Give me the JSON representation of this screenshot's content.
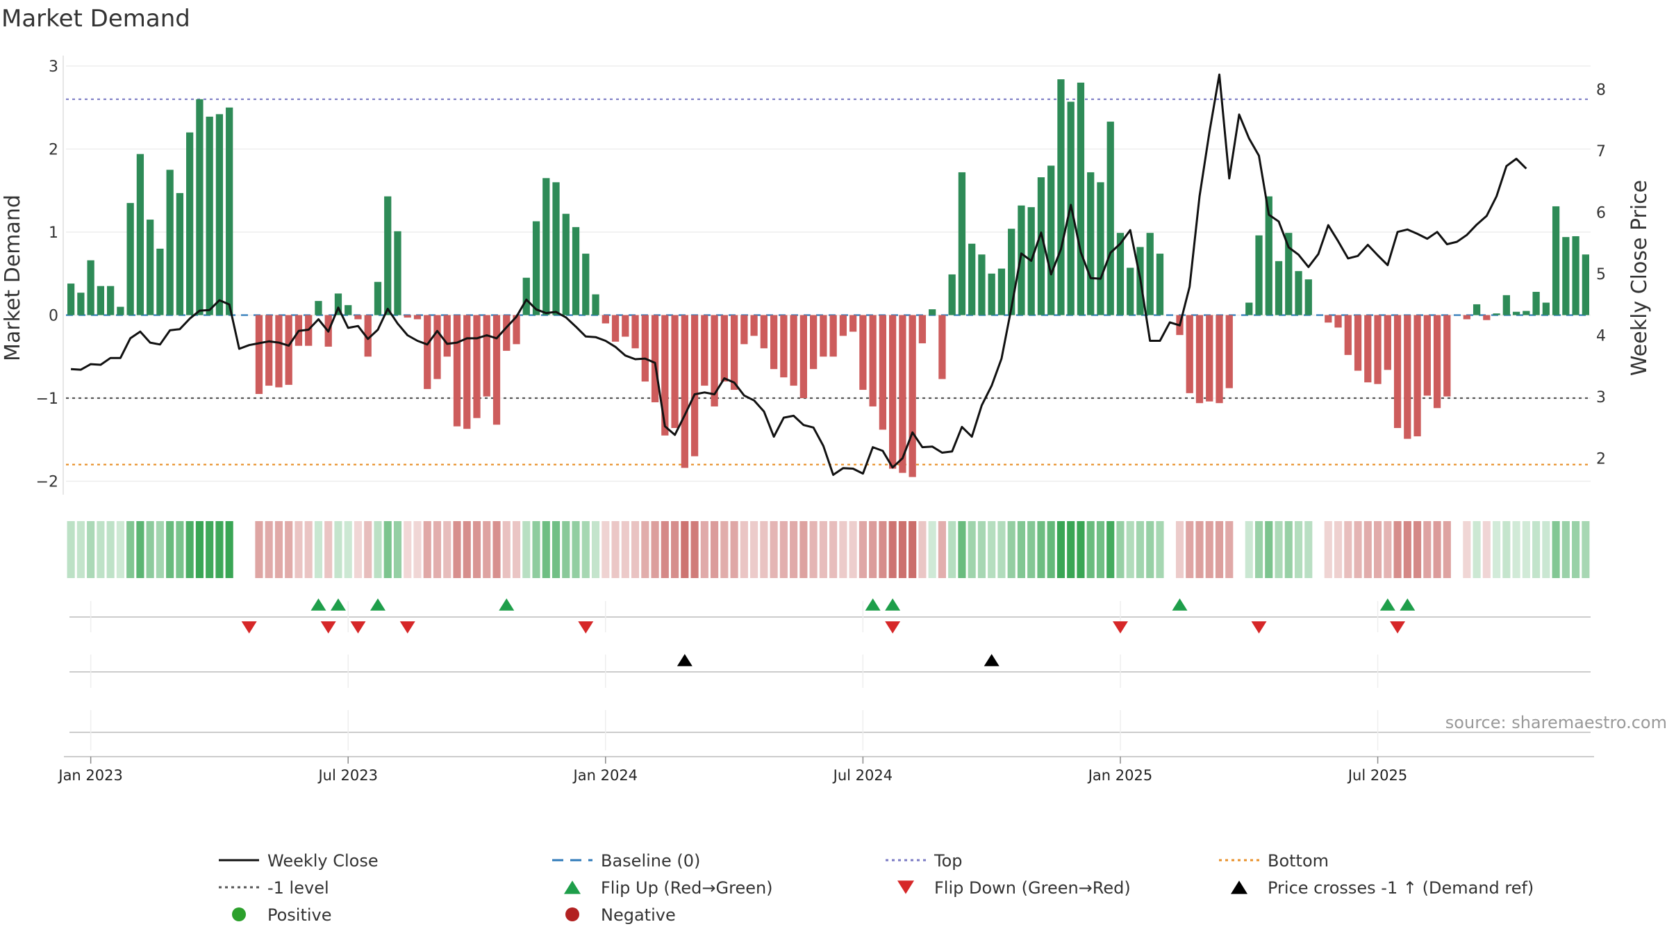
{
  "chart_data": {
    "type": "bar",
    "title": "Market Demand",
    "ylabel": "Market Demand",
    "y2label": "Weekly Close Price",
    "ylim": [
      -2.2,
      3.1
    ],
    "y2lim": [
      1.5,
      8.4
    ],
    "yticks": [
      "3",
      "2",
      "1",
      "0",
      "−1",
      "−2"
    ],
    "y2ticks": [
      "8",
      "7",
      "6",
      "5",
      "4",
      "3",
      "2"
    ],
    "xticks": [
      "Jan 2023",
      "Jul 2023",
      "Jan 2024",
      "Jul 2024",
      "Jan 2025",
      "Jul 2025"
    ],
    "levels": {
      "top": 2.6,
      "minus_one": -1,
      "bottom": -1.8,
      "baseline": 0
    },
    "demand": [
      0.38,
      0.27,
      0.66,
      0.35,
      0.35,
      0.1,
      1.35,
      1.94,
      1.15,
      0.8,
      1.75,
      1.47,
      2.2,
      2.6,
      2.39,
      2.42,
      2.5,
      0,
      0,
      -0.95,
      -0.85,
      -0.87,
      -0.84,
      -0.37,
      -0.37,
      0.17,
      -0.38,
      0.26,
      0.12,
      -0.05,
      -0.5,
      0.4,
      1.43,
      1.01,
      -0.03,
      -0.05,
      -0.89,
      -0.77,
      -0.5,
      -1.34,
      -1.37,
      -1.24,
      -0.98,
      -1.32,
      -0.43,
      -0.35,
      0.45,
      1.13,
      1.65,
      1.6,
      1.22,
      1.06,
      0.74,
      0.25,
      -0.1,
      -0.32,
      -0.26,
      -0.4,
      -0.8,
      -1.05,
      -1.45,
      -1.36,
      -1.84,
      -1.7,
      -0.85,
      -1.1,
      -0.8,
      -0.9,
      -0.35,
      -0.25,
      -0.4,
      -0.65,
      -0.75,
      -0.85,
      -1.0,
      -0.65,
      -0.5,
      -0.5,
      -0.25,
      -0.2,
      -0.9,
      -1.1,
      -1.38,
      -1.85,
      -1.9,
      -1.95,
      -0.34,
      0.07,
      -0.77,
      0.49,
      1.72,
      0.86,
      0.73,
      0.5,
      0.56,
      1.04,
      1.32,
      1.3,
      1.66,
      1.8,
      2.84,
      2.57,
      2.8,
      1.72,
      1.6,
      2.33,
      0.99,
      0.57,
      0.82,
      0.99,
      0.74,
      0,
      -0.24,
      -0.94,
      -1.06,
      -1.04,
      -1.06,
      -0.88,
      0,
      0.15,
      0.96,
      1.43,
      0.65,
      0.99,
      0.53,
      0.43,
      0,
      -0.09,
      -0.15,
      -0.48,
      -0.67,
      -0.81,
      -0.83,
      -0.66,
      -1.36,
      -1.49,
      -1.46,
      -0.97,
      -1.12,
      -0.98,
      0,
      -0.05,
      0.13,
      -0.06,
      0.02,
      0.24,
      0.04,
      0.05,
      0.28,
      0.15,
      1.31,
      0.94,
      0.95,
      0.73
    ],
    "heat_values": [
      0.38,
      0.27,
      0.66,
      0.35,
      0.35,
      0.1,
      1.35,
      1.94,
      1.15,
      0.8,
      1.75,
      1.47,
      2.2,
      2.6,
      2.39,
      2.42,
      2.5,
      0,
      0,
      -0.95,
      -0.85,
      -0.87,
      -0.84,
      -0.37,
      -0.37,
      0.17,
      -0.38,
      0.26,
      0.12,
      -0.05,
      -0.5,
      0.4,
      1.43,
      1.01,
      -0.03,
      -0.05,
      -0.89,
      -0.77,
      -0.5,
      -1.34,
      -1.37,
      -1.24,
      -0.98,
      -1.32,
      -0.43,
      -0.35,
      0.45,
      1.13,
      1.65,
      1.6,
      1.22,
      1.06,
      0.74,
      0.25,
      -0.1,
      -0.32,
      -0.26,
      -0.4,
      -0.8,
      -1.05,
      -1.45,
      -1.36,
      -1.84,
      -1.7,
      -0.85,
      -1.1,
      -0.8,
      -0.9,
      -0.35,
      -0.25,
      -0.4,
      -0.65,
      -0.75,
      -0.85,
      -1.0,
      -0.65,
      -0.5,
      -0.5,
      -0.25,
      -0.2,
      -0.9,
      -1.1,
      -1.38,
      -1.85,
      -1.9,
      -1.95,
      -0.34,
      0.07,
      -0.77,
      0.49,
      1.72,
      0.86,
      0.73,
      0.5,
      0.56,
      1.04,
      1.32,
      1.3,
      1.66,
      1.8,
      2.84,
      2.57,
      2.8,
      1.72,
      1.6,
      2.33,
      0.99,
      0.57,
      0.82,
      0.99,
      0.74,
      0,
      -0.24,
      -0.94,
      -1.06,
      -1.04,
      -1.06,
      -0.88,
      0,
      0.15,
      0.96,
      1.43,
      0.65,
      0.99,
      0.53,
      0.43,
      0,
      -0.09,
      -0.15,
      -0.48,
      -0.67,
      -0.81,
      -0.83,
      -0.66,
      -1.36,
      -1.49,
      -1.46,
      -0.97,
      -1.12,
      -0.98,
      0,
      -0.05,
      0.13,
      -0.06,
      0.02,
      0.24,
      0.04,
      0.05,
      0.28,
      0.15,
      1.31,
      0.94,
      0.95,
      0.73
    ],
    "weekly_close": [
      3.45,
      3.44,
      3.53,
      3.52,
      3.63,
      3.63,
      3.95,
      4.06,
      3.88,
      3.85,
      4.08,
      4.1,
      4.27,
      4.4,
      4.41,
      4.57,
      4.5,
      3.78,
      3.84,
      3.87,
      3.9,
      3.88,
      3.83,
      4.07,
      4.09,
      4.26,
      4.06,
      4.45,
      4.12,
      4.15,
      3.94,
      4.09,
      4.43,
      4.19,
      4.0,
      3.91,
      3.85,
      4.07,
      3.86,
      3.88,
      3.95,
      3.95,
      4.0,
      3.95,
      4.13,
      4.3,
      4.58,
      4.42,
      4.36,
      4.38,
      4.29,
      4.14,
      3.98,
      3.97,
      3.91,
      3.81,
      3.67,
      3.61,
      3.62,
      3.55,
      2.52,
      2.38,
      2.7,
      3.04,
      3.07,
      3.04,
      3.3,
      3.23,
      3.02,
      2.94,
      2.76,
      2.35,
      2.66,
      2.69,
      2.54,
      2.5,
      2.2,
      1.73,
      1.84,
      1.83,
      1.75,
      2.18,
      2.12,
      1.85,
      2.0,
      2.42,
      2.18,
      2.19,
      2.09,
      2.11,
      2.51,
      2.35,
      2.86,
      3.18,
      3.62,
      4.45,
      5.33,
      5.21,
      5.67,
      4.99,
      5.4,
      6.12,
      5.35,
      4.93,
      4.92,
      5.34,
      5.49,
      5.71,
      4.93,
      3.91,
      3.91,
      4.21,
      4.16,
      4.79,
      6.26,
      7.31,
      8.24,
      6.55,
      7.59,
      7.2,
      6.92,
      5.96,
      5.85,
      5.43,
      5.31,
      5.11,
      5.32,
      5.79,
      5.53,
      5.25,
      5.29,
      5.47,
      5.3,
      5.14,
      5.68,
      5.72,
      5.65,
      5.57,
      5.68,
      5.48,
      5.52,
      5.63,
      5.8,
      5.94,
      6.26,
      6.75,
      6.87,
      6.71
    ],
    "flip_up_weeks": [
      25,
      27,
      31,
      44,
      81,
      83,
      112,
      133,
      135
    ],
    "flip_down_weeks": [
      18,
      26,
      29,
      34,
      52,
      83,
      106,
      120,
      134
    ],
    "price_cross_weeks": [
      62,
      93
    ]
  },
  "source": "source: sharemaestro.com",
  "legend": [
    {
      "label": "Weekly Close",
      "marker": "line",
      "color": "#111111"
    },
    {
      "label": "Baseline (0)",
      "marker": "dash",
      "color": "#2f7ab9"
    },
    {
      "label": "Top",
      "marker": "dot",
      "color": "#7b7bc4"
    },
    {
      "label": "Bottom",
      "marker": "dot",
      "color": "#e8902a"
    },
    {
      "label": "-1 level",
      "marker": "dot",
      "color": "#555555"
    },
    {
      "label": "Flip Up (Red→Green)",
      "marker": "tri-up",
      "color": "#1e9e4a"
    },
    {
      "label": "Flip Down (Green→Red)",
      "marker": "tri-down",
      "color": "#d62728"
    },
    {
      "label": "Price crosses -1 ↑ (Demand ref)",
      "marker": "tri-up",
      "color": "#000000"
    },
    {
      "label": "Positive",
      "marker": "circle",
      "color": "#2ca02c"
    },
    {
      "label": "Negative",
      "marker": "circle",
      "color": "#b22222"
    }
  ],
  "colors": {
    "positive_bar": "#2e8b57",
    "negative_bar": "#cd5c5c",
    "heat_pos": "#3aa655",
    "heat_neg": "#c0504d"
  }
}
